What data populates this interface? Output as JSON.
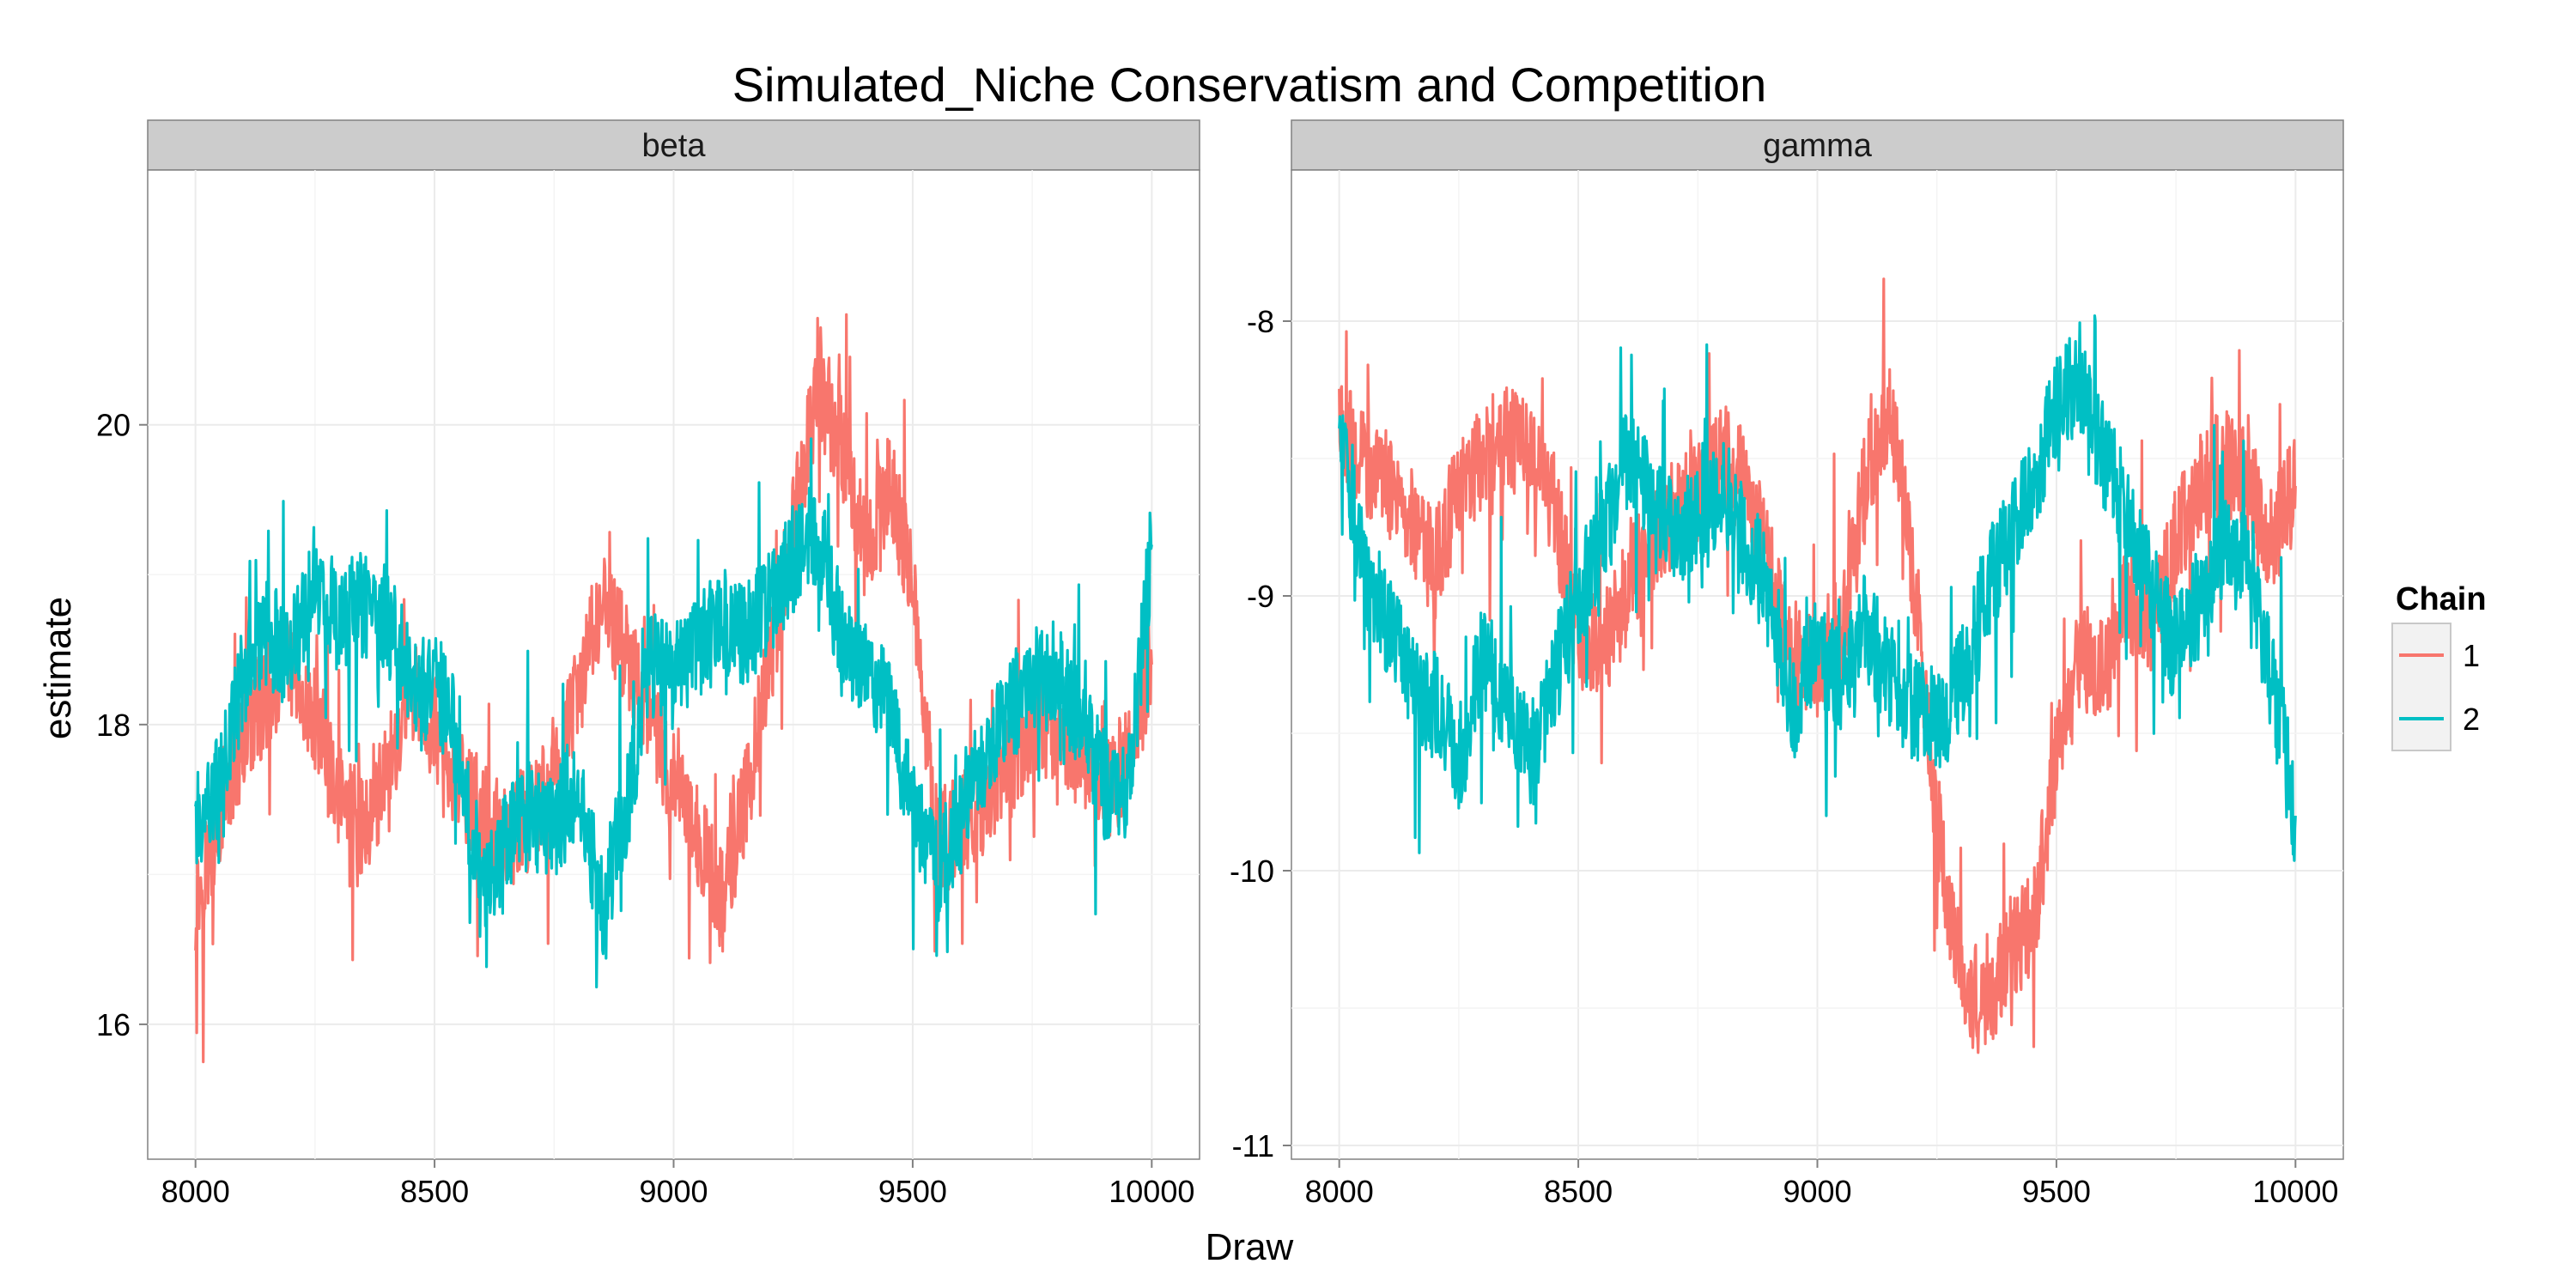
{
  "chart_data": {
    "type": "line",
    "title": "Simulated_Niche Conservatism and Competition",
    "xlabel": "Draw",
    "ylabel": "estimate",
    "legend": {
      "title": "Chain",
      "placement": "right",
      "entries": [
        {
          "label": "1",
          "color": "#F8766D"
        },
        {
          "label": "2",
          "color": "#00BFC4"
        }
      ]
    },
    "grid": true,
    "shared_x": {
      "xlim": [
        7900,
        10100
      ],
      "ticks": [
        8000,
        8500,
        9000,
        9500,
        10000
      ],
      "tick_labels": [
        "8000",
        "8500",
        "9000",
        "9500",
        "10000"
      ]
    },
    "panels": [
      {
        "strip_label": "beta",
        "ylim": [
          15.1,
          21.7
        ],
        "yticks": [
          16,
          18,
          20
        ],
        "ytick_labels": [
          "16",
          "18",
          "20"
        ],
        "series": [
          {
            "name": "1",
            "color": "#F8766D",
            "x": [
              8000,
              8050,
              8100,
              8150,
              8200,
              8250,
              8300,
              8350,
              8400,
              8450,
              8500,
              8550,
              8600,
              8650,
              8700,
              8750,
              8800,
              8850,
              8900,
              8950,
              9000,
              9050,
              9100,
              9150,
              9200,
              9250,
              9300,
              9350,
              9400,
              9450,
              9500,
              9550,
              9600,
              9650,
              9700,
              9750,
              9800,
              9850,
              9900,
              9950,
              10000
            ],
            "y": [
              16.8,
              17.4,
              17.9,
              18.2,
              18.4,
              18.0,
              17.5,
              17.3,
              17.7,
              18.2,
              18.0,
              17.6,
              17.4,
              17.2,
              17.4,
              17.6,
              18.2,
              18.8,
              18.5,
              18.0,
              17.6,
              17.3,
              16.8,
              17.5,
              18.4,
              19.3,
              20.2,
              19.9,
              19.2,
              19.6,
              19.0,
              17.2,
              17.3,
              17.5,
              17.7,
              18.0,
              18.0,
              17.8,
              17.5,
              17.8,
              18.4
            ]
          },
          {
            "name": "2",
            "color": "#00BFC4",
            "x": [
              8000,
              8050,
              8100,
              8150,
              8200,
              8250,
              8300,
              8350,
              8400,
              8450,
              8500,
              8550,
              8600,
              8650,
              8700,
              8750,
              8800,
              8850,
              8900,
              8950,
              9000,
              9050,
              9100,
              9150,
              9200,
              9250,
              9300,
              9350,
              9400,
              9450,
              9500,
              9550,
              9600,
              9650,
              9700,
              9750,
              9800,
              9850,
              9900,
              9950,
              10000
            ],
            "y": [
              17.3,
              17.6,
              18.3,
              18.6,
              18.5,
              18.9,
              18.7,
              18.8,
              18.7,
              18.3,
              18.3,
              17.9,
              16.8,
              17.2,
              17.4,
              17.3,
              17.6,
              16.8,
              17.4,
              18.4,
              18.3,
              18.5,
              18.7,
              18.6,
              18.8,
              19.1,
              19.3,
              18.6,
              18.4,
              18.2,
              17.5,
              17.0,
              17.3,
              17.8,
              18.1,
              18.3,
              18.4,
              18.0,
              17.6,
              17.5,
              19.2
            ]
          }
        ]
      },
      {
        "strip_label": "gamma",
        "ylim": [
          -11.05,
          -7.45
        ],
        "yticks": [
          -11,
          -10,
          -9,
          -8
        ],
        "ytick_labels": [
          "-11",
          "-10",
          "-9",
          "-8"
        ],
        "series": [
          {
            "name": "1",
            "color": "#F8766D",
            "x": [
              8000,
              8050,
              8100,
              8150,
              8200,
              8250,
              8300,
              8350,
              8400,
              8450,
              8500,
              8550,
              8600,
              8650,
              8700,
              8750,
              8800,
              8850,
              8900,
              8950,
              9000,
              9050,
              9100,
              9150,
              9200,
              9250,
              9300,
              9350,
              9400,
              9450,
              9500,
              9550,
              9600,
              9650,
              9700,
              9750,
              9800,
              9850,
              9900,
              9950,
              10000
            ],
            "y": [
              -8.4,
              -8.5,
              -8.6,
              -8.7,
              -8.9,
              -8.6,
              -8.5,
              -8.4,
              -8.5,
              -8.7,
              -9.1,
              -9.2,
              -9.0,
              -8.8,
              -8.7,
              -8.6,
              -8.5,
              -8.6,
              -8.9,
              -9.2,
              -9.3,
              -9.1,
              -8.6,
              -8.3,
              -8.9,
              -9.8,
              -10.4,
              -10.5,
              -10.3,
              -10.2,
              -9.6,
              -9.2,
              -9.3,
              -9.0,
              -9.1,
              -8.8,
              -8.6,
              -8.5,
              -8.6,
              -8.8,
              -8.6
            ]
          },
          {
            "name": "2",
            "color": "#00BFC4",
            "x": [
              8000,
              8050,
              8100,
              8150,
              8200,
              8250,
              8300,
              8350,
              8400,
              8450,
              8500,
              8550,
              8600,
              8650,
              8700,
              8750,
              8800,
              8850,
              8900,
              8950,
              9000,
              9050,
              9100,
              9150,
              9200,
              9250,
              9300,
              9350,
              9400,
              9450,
              9500,
              9550,
              9600,
              9650,
              9700,
              9750,
              9800,
              9850,
              9900,
              9950,
              10000
            ],
            "y": [
              -8.4,
              -8.9,
              -9.1,
              -9.3,
              -9.4,
              -9.6,
              -9.2,
              -9.4,
              -9.6,
              -9.3,
              -9.0,
              -8.8,
              -8.5,
              -8.6,
              -8.8,
              -8.7,
              -8.6,
              -8.8,
              -9.0,
              -9.4,
              -9.2,
              -9.3,
              -9.1,
              -9.3,
              -9.4,
              -9.5,
              -9.3,
              -9.0,
              -8.8,
              -8.6,
              -8.3,
              -8.2,
              -8.5,
              -8.7,
              -9.0,
              -9.2,
              -9.0,
              -8.8,
              -8.9,
              -9.3,
              -9.8
            ]
          }
        ]
      }
    ]
  }
}
